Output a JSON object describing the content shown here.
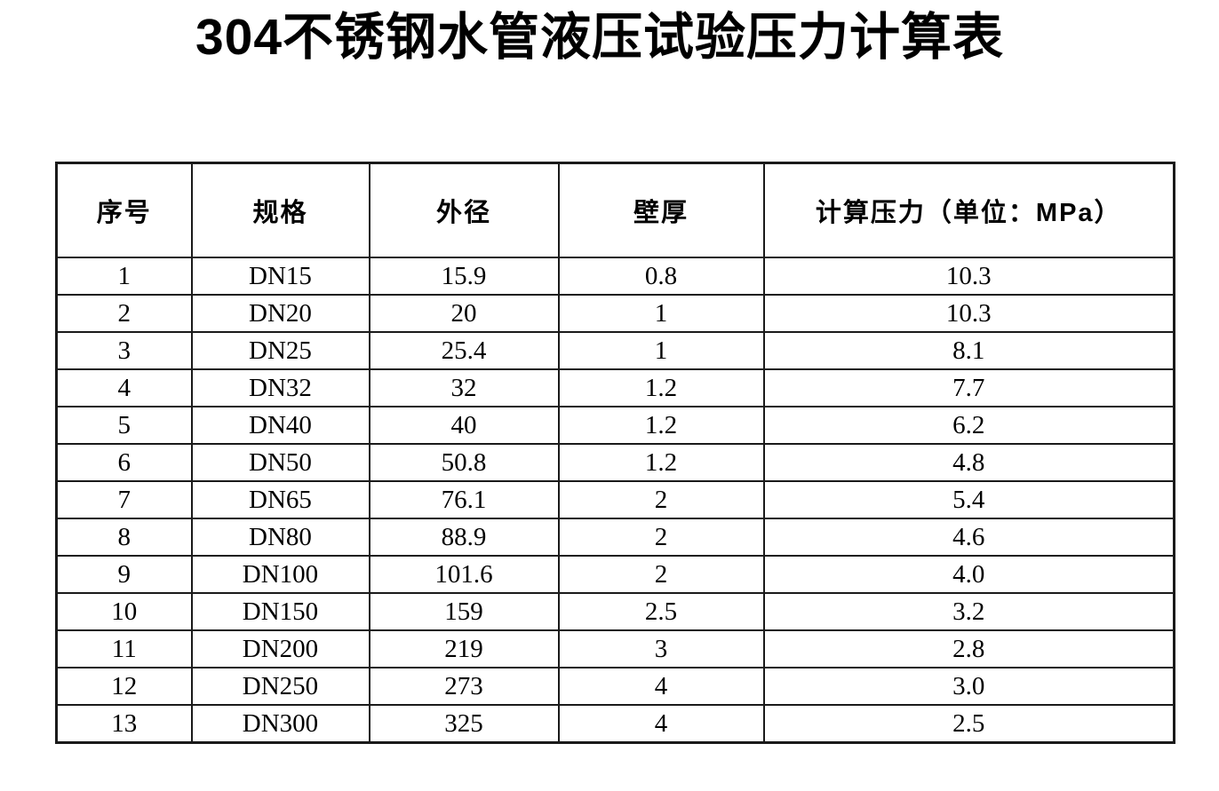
{
  "title": "304不锈钢水管液压试验压力计算表",
  "table": {
    "headers": [
      "序号",
      "规格",
      "外径",
      "壁厚",
      "计算压力（单位：MPa）"
    ],
    "rows": [
      [
        "1",
        "DN15",
        "15.9",
        "0.8",
        "10.3"
      ],
      [
        "2",
        "DN20",
        "20",
        "1",
        "10.3"
      ],
      [
        "3",
        "DN25",
        "25.4",
        "1",
        "8.1"
      ],
      [
        "4",
        "DN32",
        "32",
        "1.2",
        "7.7"
      ],
      [
        "5",
        "DN40",
        "40",
        "1.2",
        "6.2"
      ],
      [
        "6",
        "DN50",
        "50.8",
        "1.2",
        "4.8"
      ],
      [
        "7",
        "DN65",
        "76.1",
        "2",
        "5.4"
      ],
      [
        "8",
        "DN80",
        "88.9",
        "2",
        "4.6"
      ],
      [
        "9",
        "DN100",
        "101.6",
        "2",
        "4.0"
      ],
      [
        "10",
        "DN150",
        "159",
        "2.5",
        "3.2"
      ],
      [
        "11",
        "DN200",
        "219",
        "3",
        "2.8"
      ],
      [
        "12",
        "DN250",
        "273",
        "4",
        "3.0"
      ],
      [
        "13",
        "DN300",
        "325",
        "4",
        "2.5"
      ]
    ]
  },
  "colors": {
    "text": "#000000",
    "background": "#ffffff",
    "border": "#1a1a1a"
  }
}
